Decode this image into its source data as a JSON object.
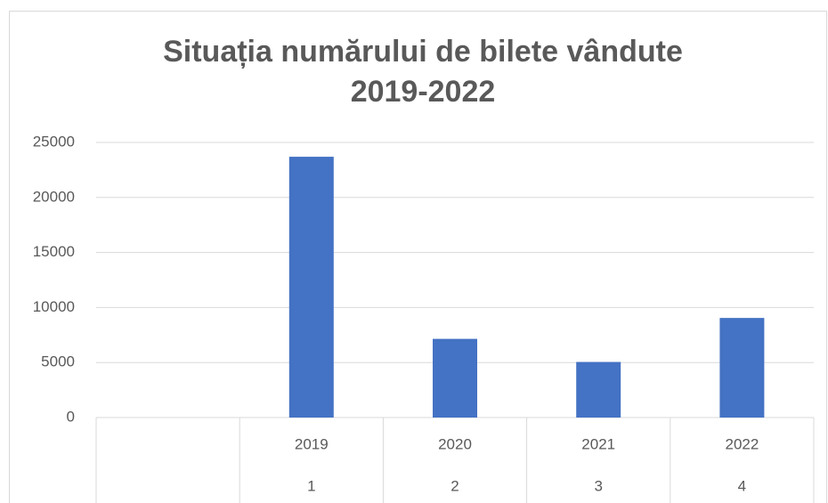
{
  "chart_data": {
    "type": "bar",
    "title": [
      "Situația numărului de bilete vândute",
      "2019-2022"
    ],
    "categories": [
      null,
      "2019",
      "2020",
      "2021",
      "2022"
    ],
    "subcategories": [
      null,
      "1",
      "2",
      "3",
      "4"
    ],
    "values": [
      null,
      23700,
      7150,
      5050,
      9050
    ],
    "color": "#4472c4",
    "ylim": [
      0,
      25000
    ],
    "yticks": [
      0,
      5000,
      10000,
      15000,
      20000,
      25000
    ],
    "grid": true
  }
}
